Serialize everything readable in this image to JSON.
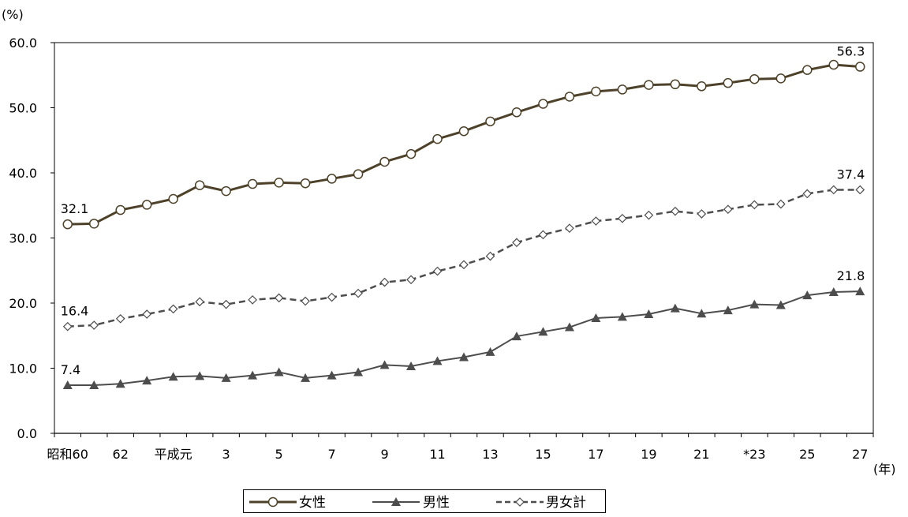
{
  "chart_data": {
    "type": "line",
    "y_unit_label": "(%)",
    "x_unit_label": "(年)",
    "ylim": [
      0,
      60
    ],
    "y_ticks": [
      "0.0",
      "10.0",
      "20.0",
      "30.0",
      "40.0",
      "50.0",
      "60.0"
    ],
    "x_tick_labels": [
      "昭和60",
      "62",
      "平成元",
      "3",
      "5",
      "7",
      "9",
      "11",
      "13",
      "15",
      "17",
      "19",
      "21",
      "*23",
      "25",
      "27"
    ],
    "x": [
      "昭和60",
      "61",
      "62",
      "63",
      "平成元",
      "2",
      "3",
      "4",
      "5",
      "6",
      "7",
      "8",
      "9",
      "10",
      "11",
      "12",
      "13",
      "14",
      "15",
      "16",
      "17",
      "18",
      "19",
      "20",
      "21",
      "22",
      "*23",
      "24",
      "25",
      "26",
      "27"
    ],
    "series": [
      {
        "name": "女性",
        "color": "#4d4229",
        "style": "solid-circle",
        "values": [
          32.1,
          32.2,
          34.3,
          35.1,
          36.0,
          38.1,
          37.2,
          38.3,
          38.5,
          38.4,
          39.1,
          39.8,
          41.7,
          42.9,
          45.2,
          46.4,
          47.9,
          49.3,
          50.6,
          51.7,
          52.5,
          52.8,
          53.5,
          53.6,
          53.3,
          53.8,
          54.4,
          54.5,
          55.8,
          56.6,
          56.3
        ]
      },
      {
        "name": "男性",
        "color": "#4d4d4d",
        "style": "solid-triangle",
        "values": [
          7.4,
          7.4,
          7.6,
          8.1,
          8.7,
          8.8,
          8.5,
          8.9,
          9.4,
          8.5,
          8.9,
          9.4,
          10.5,
          10.3,
          11.1,
          11.7,
          12.5,
          14.9,
          15.6,
          16.3,
          17.7,
          17.9,
          18.3,
          19.2,
          18.4,
          18.9,
          19.8,
          19.7,
          21.2,
          21.7,
          21.8
        ]
      },
      {
        "name": "男女計",
        "color": "#4d4d4d",
        "style": "dashed-diamond",
        "values": [
          16.4,
          16.6,
          17.6,
          18.3,
          19.1,
          20.2,
          19.8,
          20.5,
          20.8,
          20.3,
          20.9,
          21.5,
          23.2,
          23.6,
          24.9,
          25.9,
          27.2,
          29.3,
          30.5,
          31.5,
          32.6,
          33.0,
          33.5,
          34.1,
          33.7,
          34.4,
          35.1,
          35.2,
          36.8,
          37.4,
          37.4
        ]
      }
    ],
    "data_labels": [
      {
        "series": 0,
        "index": 0,
        "text": "32.1"
      },
      {
        "series": 0,
        "index": 30,
        "text": "56.3"
      },
      {
        "series": 2,
        "index": 0,
        "text": "16.4"
      },
      {
        "series": 2,
        "index": 30,
        "text": "37.4"
      },
      {
        "series": 1,
        "index": 0,
        "text": "7.4"
      },
      {
        "series": 1,
        "index": 30,
        "text": "21.8"
      }
    ]
  },
  "legend": {
    "items": [
      {
        "label": "女性"
      },
      {
        "label": "男性"
      },
      {
        "label": "男女計"
      }
    ]
  }
}
